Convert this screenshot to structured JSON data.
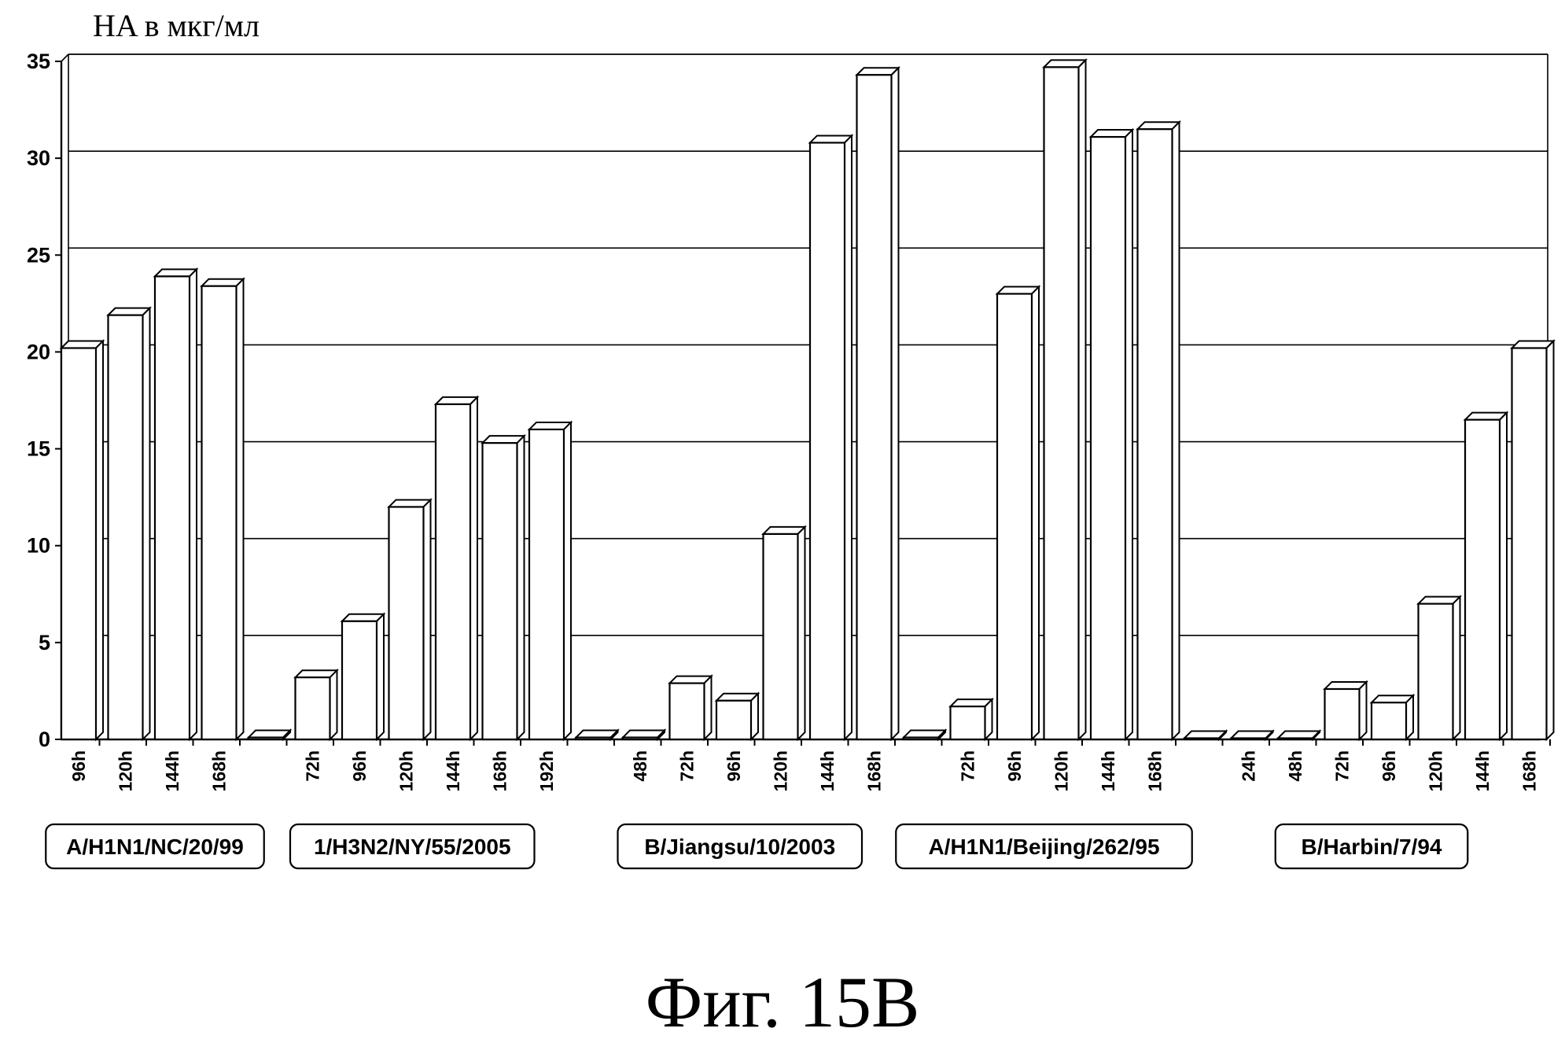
{
  "figure_caption": "Фиг. 15B",
  "chart_data": {
    "type": "bar",
    "ylabel": "HA в мкг/мл",
    "xlabel": "",
    "ylim": [
      0,
      35
    ],
    "yticks": [
      0,
      5,
      10,
      15,
      20,
      25,
      30,
      35
    ],
    "grid": true,
    "style": "3d-bars",
    "groups": [
      {
        "label": "A/H1N1/NC/20/99",
        "bars": [
          {
            "x": "96h",
            "y": 20.2
          },
          {
            "x": "120h",
            "y": 21.9
          },
          {
            "x": "144h",
            "y": 23.9
          },
          {
            "x": "168h",
            "y": 23.4
          }
        ]
      },
      {
        "label": "1/H3N2/NY/55/2005",
        "bars": [
          {
            "x": "",
            "y": 0.1
          },
          {
            "x": "72h",
            "y": 3.2
          },
          {
            "x": "96h",
            "y": 6.1
          },
          {
            "x": "120h",
            "y": 12.0
          },
          {
            "x": "144h",
            "y": 17.3
          },
          {
            "x": "168h",
            "y": 15.3
          },
          {
            "x": "192h",
            "y": 16.0
          }
        ]
      },
      {
        "label": "B/Jiangsu/10/2003",
        "bars": [
          {
            "x": "",
            "y": 0.1
          },
          {
            "x": "48h",
            "y": 0.1
          },
          {
            "x": "72h",
            "y": 2.9
          },
          {
            "x": "96h",
            "y": 2.0
          },
          {
            "x": "120h",
            "y": 10.6
          },
          {
            "x": "144h",
            "y": 30.8
          },
          {
            "x": "168h",
            "y": 34.3
          }
        ]
      },
      {
        "label": "A/H1N1/Beijing/262/95",
        "bars": [
          {
            "x": "",
            "y": 0.1
          },
          {
            "x": "72h",
            "y": 1.7
          },
          {
            "x": "96h",
            "y": 23.0
          },
          {
            "x": "120h",
            "y": 34.7
          },
          {
            "x": "144h",
            "y": 31.1
          },
          {
            "x": "168h",
            "y": 31.5
          }
        ]
      },
      {
        "label": "B/Harbin/7/94",
        "bars": [
          {
            "x": "",
            "y": 0.0
          },
          {
            "x": "24h",
            "y": 0.0
          },
          {
            "x": "48h",
            "y": 0.0
          },
          {
            "x": "72h",
            "y": 2.6
          },
          {
            "x": "96h",
            "y": 1.9
          },
          {
            "x": "120h",
            "y": 7.0
          },
          {
            "x": "144h",
            "y": 16.5
          },
          {
            "x": "168h",
            "y": 20.2
          }
        ]
      }
    ]
  }
}
